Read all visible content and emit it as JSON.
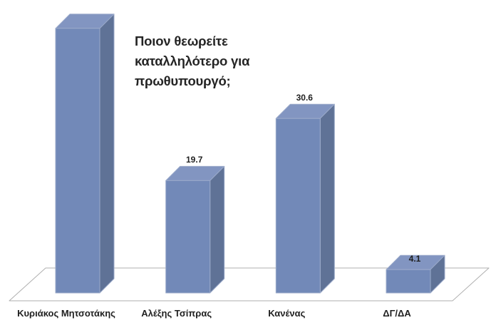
{
  "chart_data": {
    "type": "bar",
    "variant": "3d-column",
    "title": "Ποιον θεωρείτε καταλληλότερο για πρωθυπουργό;",
    "title_lines": [
      "Ποιον θεωρείτε",
      "καταλληλότερο για",
      "πρωθυπουργό;"
    ],
    "categories": [
      "Κυριάκος Μητσοτάκης",
      "Αλέξης Τσίπρας",
      "Κανένας",
      "ΔΓ/ΔΑ"
    ],
    "values": [
      46.4,
      19.7,
      30.6,
      4.1
    ],
    "values_estimated": [
      true,
      false,
      false,
      false
    ],
    "data_labels": [
      "",
      "19.7",
      "30.6",
      "4.1"
    ],
    "xlabel": "",
    "ylabel": "",
    "ylim": [
      0,
      50
    ],
    "legend_position": "none",
    "grid": false,
    "axes_shown": false
  },
  "colors": {
    "bar_front": "#7289B8",
    "bar_top": "#8295C1",
    "bar_side": "#5F7296",
    "bar_edge": "#9BAACA",
    "floor_fill": "#FFFFFF",
    "floor_stroke": "#AFAFAF",
    "label_text": "#1F1F1F",
    "title_text": "#252525",
    "background": "#FFFFFF"
  }
}
